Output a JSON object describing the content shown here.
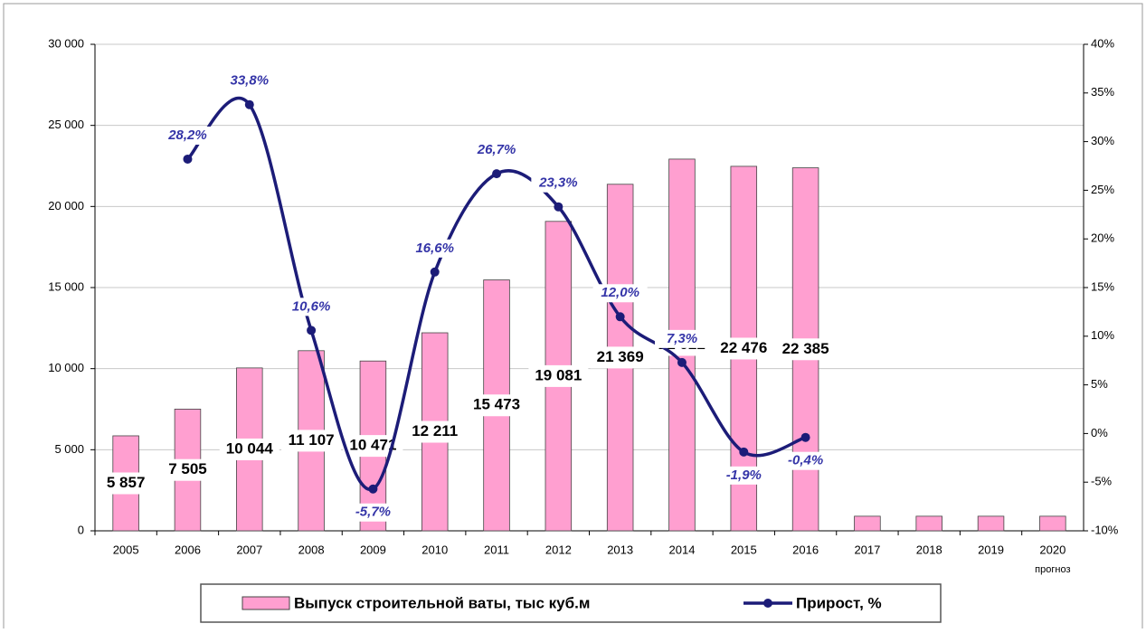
{
  "chart_data": {
    "type": "bar_line",
    "categories": [
      "2005",
      "2006",
      "2007",
      "2008",
      "2009",
      "2010",
      "2011",
      "2012",
      "2013",
      "2014",
      "2015",
      "2016",
      "2017",
      "2018",
      "2019",
      "2020"
    ],
    "annotation": "прогноз",
    "series": [
      {
        "name": "Выпуск строительной ваты, тыс куб.м",
        "type": "bar",
        "color": "#ff9fd0",
        "values": [
          5857,
          7505,
          10044,
          11107,
          10471,
          12211,
          15473,
          19081,
          21369,
          22922,
          22476,
          22385,
          900,
          900,
          900,
          900
        ],
        "value_labels": [
          "5 857",
          "7 505",
          "10 044",
          "11 107",
          "10 471",
          "12 211",
          "15 473",
          "19 081",
          "21 369",
          "22 922",
          "22 476",
          "22 385",
          null,
          null,
          null,
          null
        ]
      },
      {
        "name": "Прирост, %",
        "type": "line",
        "axis": "y2",
        "color": "#1c1c78",
        "values": [
          null,
          28.2,
          33.8,
          10.6,
          -5.7,
          16.6,
          26.7,
          23.3,
          12.0,
          7.3,
          -1.9,
          -0.4,
          null,
          null,
          null,
          null
        ],
        "value_labels": [
          null,
          "28,2%",
          "33,8%",
          "10,6%",
          "-5,7%",
          "16,6%",
          "26,7%",
          "23,3%",
          "12,0%",
          "7,3%",
          "-1,9%",
          "-0,4%",
          null,
          null,
          null,
          null
        ]
      }
    ],
    "ylim": [
      0,
      30000
    ],
    "yticks": [
      0,
      {
        "value": 5000,
        "label": "5 000"
      },
      {
        "value": 10000,
        "label": "10 000"
      },
      {
        "value": 15000,
        "label": "15 000"
      },
      {
        "value": 20000,
        "label": "20 000"
      },
      {
        "value": 25000,
        "label": "25 000"
      },
      {
        "value": 30000,
        "label": "30 000"
      }
    ],
    "y2lim": [
      -10,
      40
    ],
    "y2ticks": [
      {
        "value": -10,
        "label": "-10%"
      },
      {
        "value": -5,
        "label": "-5%"
      },
      {
        "value": 0,
        "label": "0%"
      },
      {
        "value": 5,
        "label": "5%"
      },
      {
        "value": 10,
        "label": "10%"
      },
      {
        "value": 15,
        "label": "15%"
      },
      {
        "value": 20,
        "label": "20%"
      },
      {
        "value": 25,
        "label": "25%"
      },
      {
        "value": 30,
        "label": "30%"
      },
      {
        "value": 35,
        "label": "35%"
      },
      {
        "value": 40,
        "label": "40%"
      }
    ],
    "grid": true,
    "legend": "bottom"
  }
}
